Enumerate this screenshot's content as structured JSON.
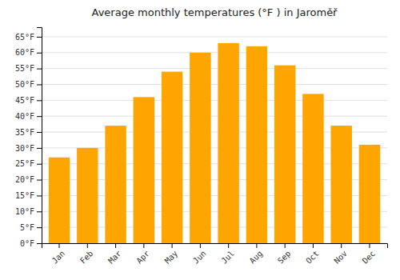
{
  "chart_data": {
    "type": "bar",
    "title": "Average monthly temperatures (°F ) in Jaroměř",
    "categories": [
      "Jan",
      "Feb",
      "Mar",
      "Apr",
      "May",
      "Jun",
      "Jul",
      "Aug",
      "Sep",
      "Oct",
      "Nov",
      "Dec"
    ],
    "values": [
      27,
      30,
      37,
      46,
      54,
      60,
      63,
      62,
      56,
      47,
      37,
      31
    ],
    "color": "#FFA500",
    "ylim": [
      0,
      68
    ],
    "yticks": [
      {
        "value": 0,
        "label": "0°F"
      },
      {
        "value": 5,
        "label": "5°F"
      },
      {
        "value": 10,
        "label": "10°F"
      },
      {
        "value": 15,
        "label": "15°F"
      },
      {
        "value": 20,
        "label": "20°F"
      },
      {
        "value": 25,
        "label": "25°F"
      },
      {
        "value": 30,
        "label": "30°F"
      },
      {
        "value": 35,
        "label": "35°F"
      },
      {
        "value": 40,
        "label": "40°F"
      },
      {
        "value": 45,
        "label": "45°F"
      },
      {
        "value": 50,
        "label": "50°F"
      },
      {
        "value": 55,
        "label": "55°F"
      },
      {
        "value": 60,
        "label": "60°F"
      },
      {
        "value": 65,
        "label": "65°F"
      }
    ],
    "grid": true
  }
}
